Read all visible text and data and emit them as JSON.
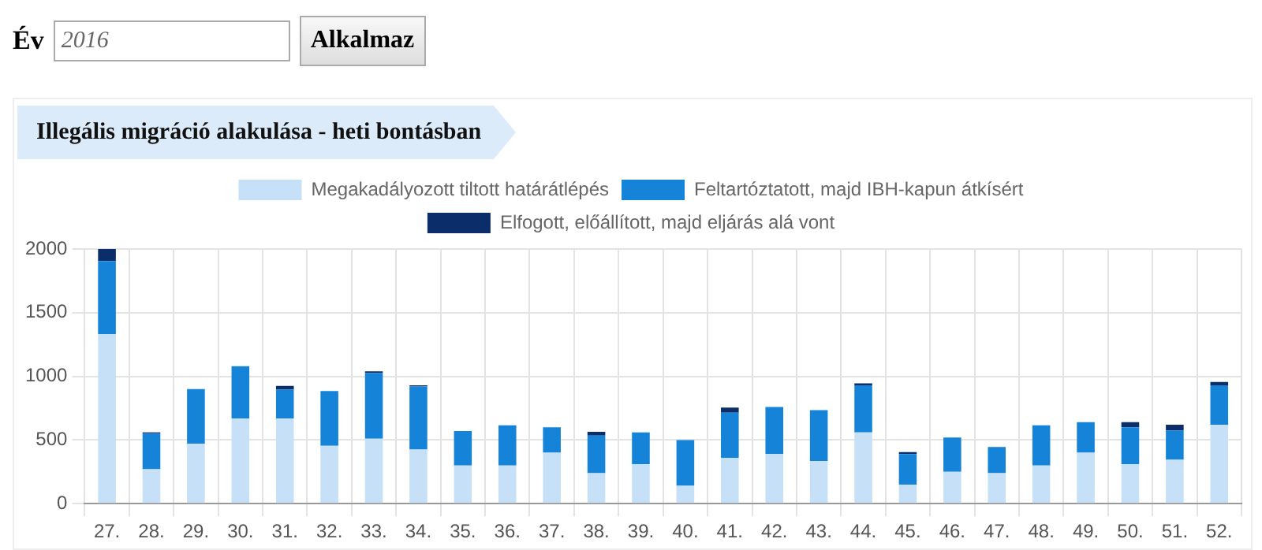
{
  "chart_data": {
    "type": "bar",
    "title": "Illegális migráció alakulása - heti bontásban",
    "annotations": [
      "Év",
      "2016",
      "Alkalmaz"
    ],
    "categories": [
      "27.",
      "28.",
      "29.",
      "30.",
      "31.",
      "32.",
      "33.",
      "34.",
      "35.",
      "36.",
      "37.",
      "38.",
      "39.",
      "40.",
      "41.",
      "42.",
      "43.",
      "44.",
      "45.",
      "46.",
      "47.",
      "48.",
      "49.",
      "50.",
      "51.",
      "52."
    ],
    "series": [
      {
        "name": "Megakadályozott tiltott határátlépés",
        "color": "#c5e0f7",
        "values": [
          1330,
          270,
          470,
          670,
          670,
          455,
          510,
          425,
          300,
          300,
          400,
          240,
          310,
          140,
          360,
          390,
          335,
          560,
          150,
          250,
          240,
          300,
          400,
          310,
          345,
          620
        ]
      },
      {
        "name": "Feltartóztatott, majd IBH-kapun átkísért",
        "color": "#1584d8",
        "values": [
          575,
          280,
          430,
          410,
          225,
          430,
          515,
          495,
          270,
          315,
          200,
          295,
          250,
          360,
          355,
          370,
          400,
          370,
          240,
          270,
          205,
          315,
          240,
          290,
          230,
          310
        ]
      },
      {
        "name": "Elfogott, előállított, majd eljárás alá vont",
        "color": "#0b2e6b",
        "values": [
          95,
          10,
          0,
          0,
          30,
          0,
          15,
          10,
          0,
          0,
          0,
          30,
          0,
          0,
          40,
          0,
          0,
          15,
          15,
          0,
          0,
          0,
          0,
          40,
          45,
          25
        ]
      }
    ],
    "stacked": true,
    "ylim": [
      0,
      2000
    ],
    "yticks": [
      0,
      500,
      1000,
      1500,
      2000
    ],
    "grid": true,
    "legend": "top"
  }
}
